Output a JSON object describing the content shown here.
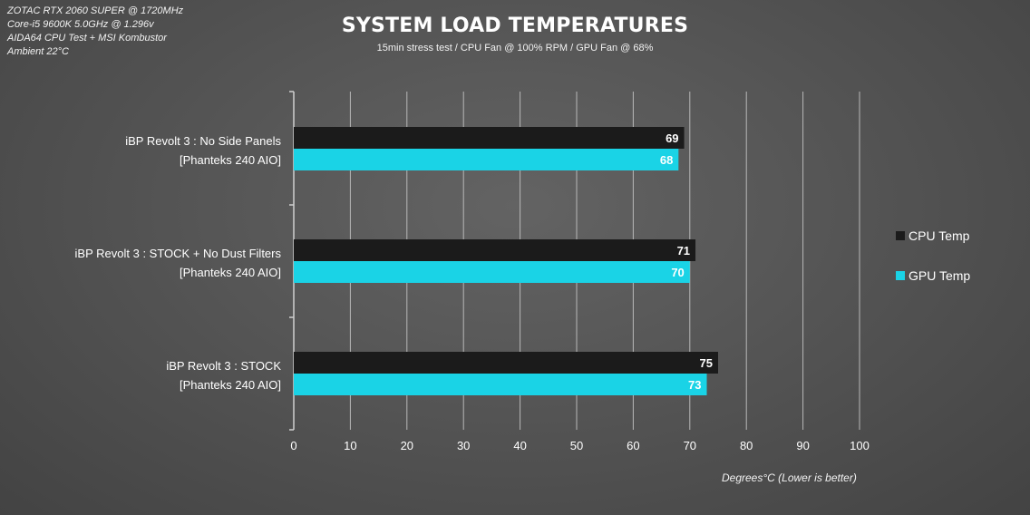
{
  "info_lines": [
    "ZOTAC RTX 2060 SUPER @ 1720MHz",
    "Core-i5 9600K 5.0GHz @ 1.296v",
    "AIDA64 CPU Test + MSI Kombustor",
    "Ambient 22°C"
  ],
  "colors": {
    "cpu": "#1b1b1b",
    "gpu": "#1ad3e6",
    "grid": "#b8b8b8"
  },
  "chart_data": {
    "type": "bar",
    "orientation": "horizontal",
    "title": "SYSTEM LOAD TEMPERATURES",
    "subtitle": "15min stress test / CPU Fan @ 100% RPM / GPU Fan @ 68%",
    "xlabel": "Degrees°C (Lower is better)",
    "ylabel": "",
    "xlim": [
      0,
      100
    ],
    "ticks": [
      "0",
      "10",
      "20",
      "30",
      "40",
      "50",
      "60",
      "70",
      "80",
      "90",
      "100"
    ],
    "grid": true,
    "legend_position": "right",
    "categories": [
      {
        "line1": "iBP Revolt 3 : No Side Panels",
        "line2": "[Phanteks 240 AIO]"
      },
      {
        "line1": "iBP Revolt 3 : STOCK + No Dust Filters",
        "line2": "[Phanteks 240 AIO]"
      },
      {
        "line1": "iBP Revolt 3 : STOCK",
        "line2": "[Phanteks 240 AIO]"
      }
    ],
    "series": [
      {
        "name": "CPU Temp",
        "values": [
          69,
          71,
          75
        ]
      },
      {
        "name": "GPU Temp",
        "values": [
          68,
          70,
          73
        ]
      }
    ]
  }
}
